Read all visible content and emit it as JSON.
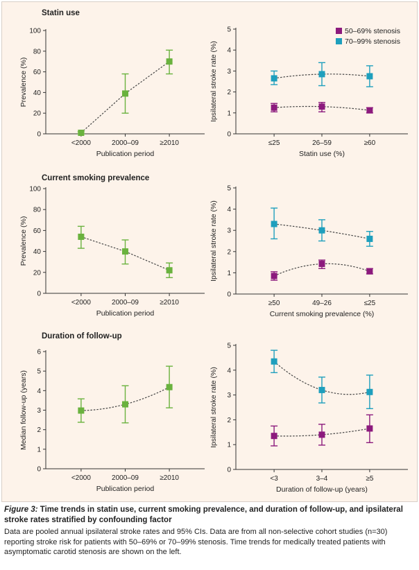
{
  "caption": {
    "figure_label": "Figure 3:",
    "title": "Time trends in statin use, current smoking prevalence, and duration of follow-up, and ipsilateral stroke rates stratified by confounding factor",
    "body": "Data are pooled annual ipsilateral stroke rates and 95% CIs. Data are from all non-selective cohort studies (n=30) reporting stroke risk for patients with 50–69% or 70–99% stenosis. Time trends for medically treated patients with asymptomatic carotid stenosis are shown on the left."
  },
  "colors": {
    "green": "#6ab23e",
    "purple": "#8c1a7d",
    "teal": "#1e9fbd",
    "axis": "#333333",
    "panel_bg": "#fdf3ea"
  },
  "chart_data": [
    {
      "id": "statin-prevalence",
      "type": "line",
      "title": "Statin use",
      "xlabel": "Publication period",
      "ylabel": "Prevalence (%)",
      "categories": [
        "<2000",
        "2000–09",
        "≥2010"
      ],
      "ylim": [
        0,
        100
      ],
      "yticks": [
        0,
        20,
        40,
        60,
        80,
        100
      ],
      "series": [
        {
          "color": "green",
          "trend": "straight",
          "points": [
            {
              "y": 1,
              "low": 0,
              "high": 2
            },
            {
              "y": 39,
              "low": 20,
              "high": 58
            },
            {
              "y": 70,
              "low": 58,
              "high": 81
            }
          ]
        }
      ]
    },
    {
      "id": "statin-stroke",
      "type": "line",
      "title": "",
      "xlabel": "Statin use (%)",
      "ylabel": "Ipsilateral stroke rate (%)",
      "categories": [
        "≤25",
        "26–59",
        "≥60"
      ],
      "ylim": [
        0,
        5
      ],
      "yticks": [
        0,
        1,
        2,
        3,
        4,
        5
      ],
      "legend": {
        "placement": "top-right",
        "entries": [
          {
            "name": "50–69% stenosis",
            "color": "purple"
          },
          {
            "name": "70–99% stenosis",
            "color": "teal"
          }
        ]
      },
      "series": [
        {
          "name": "50–69% stenosis",
          "color": "purple",
          "trend": "curve",
          "points": [
            {
              "y": 1.25,
              "low": 1.05,
              "high": 1.45
            },
            {
              "y": 1.3,
              "low": 1.05,
              "high": 1.5
            },
            {
              "y": 1.12,
              "low": 1.0,
              "high": 1.25
            }
          ]
        },
        {
          "name": "70–99% stenosis",
          "color": "teal",
          "trend": "curve",
          "points": [
            {
              "y": 2.65,
              "low": 2.35,
              "high": 3.0
            },
            {
              "y": 2.85,
              "low": 2.3,
              "high": 3.4
            },
            {
              "y": 2.75,
              "low": 2.25,
              "high": 3.25
            }
          ]
        }
      ]
    },
    {
      "id": "smoking-prevalence",
      "type": "line",
      "title": "Current smoking prevalence",
      "xlabel": "Publication period",
      "ylabel": "Prevalence (%)",
      "categories": [
        "<2000",
        "2000–09",
        "≥2010"
      ],
      "ylim": [
        0,
        100
      ],
      "yticks": [
        0,
        20,
        40,
        60,
        80,
        100
      ],
      "series": [
        {
          "color": "green",
          "trend": "straight",
          "points": [
            {
              "y": 54,
              "low": 43,
              "high": 64
            },
            {
              "y": 40,
              "low": 28,
              "high": 51
            },
            {
              "y": 22,
              "low": 15,
              "high": 29
            }
          ]
        }
      ]
    },
    {
      "id": "smoking-stroke",
      "type": "line",
      "title": "",
      "xlabel": "Current smoking prevalence (%)",
      "ylabel": "Ipsilateral stroke rate (%)",
      "categories": [
        "≥50",
        "49–26",
        "≤25"
      ],
      "ylim": [
        0,
        5
      ],
      "yticks": [
        0,
        1,
        2,
        3,
        4,
        5
      ],
      "series": [
        {
          "name": "50–69% stenosis",
          "color": "purple",
          "trend": "curve",
          "points": [
            {
              "y": 0.85,
              "low": 0.65,
              "high": 1.05
            },
            {
              "y": 1.42,
              "low": 1.2,
              "high": 1.6
            },
            {
              "y": 1.07,
              "low": 0.95,
              "high": 1.2
            }
          ]
        },
        {
          "name": "70–99% stenosis",
          "color": "teal",
          "trend": "curve",
          "points": [
            {
              "y": 3.3,
              "low": 2.6,
              "high": 4.05
            },
            {
              "y": 3.0,
              "low": 2.5,
              "high": 3.5
            },
            {
              "y": 2.6,
              "low": 2.25,
              "high": 2.95
            }
          ]
        }
      ]
    },
    {
      "id": "followup-duration",
      "type": "line",
      "title": "Duration of follow-up",
      "xlabel": "Publication period",
      "ylabel": "Median follow-up (years)",
      "categories": [
        "<2000",
        "2000–09",
        "≥2010"
      ],
      "ylim": [
        0,
        6
      ],
      "yticks": [
        0,
        1,
        2,
        3,
        4,
        5,
        6
      ],
      "series": [
        {
          "color": "green",
          "trend": "curve",
          "points": [
            {
              "y": 2.98,
              "low": 2.38,
              "high": 3.58
            },
            {
              "y": 3.3,
              "low": 2.35,
              "high": 4.25
            },
            {
              "y": 4.18,
              "low": 3.12,
              "high": 5.25
            }
          ]
        }
      ]
    },
    {
      "id": "followup-stroke",
      "type": "line",
      "title": "",
      "xlabel": "Duration of follow-up (years)",
      "ylabel": "Ipsilateral stroke rate (%)",
      "categories": [
        "<3",
        "3–4",
        "≥5"
      ],
      "ylim": [
        0,
        5
      ],
      "yticks": [
        0,
        1,
        2,
        3,
        4,
        5
      ],
      "series": [
        {
          "name": "50–69% stenosis",
          "color": "purple",
          "trend": "curve",
          "points": [
            {
              "y": 1.35,
              "low": 0.95,
              "high": 1.75
            },
            {
              "y": 1.4,
              "low": 0.98,
              "high": 1.82
            },
            {
              "y": 1.65,
              "low": 1.08,
              "high": 2.2
            }
          ]
        },
        {
          "name": "70–99% stenosis",
          "color": "teal",
          "trend": "curve",
          "points": [
            {
              "y": 4.35,
              "low": 3.9,
              "high": 4.8
            },
            {
              "y": 3.2,
              "low": 2.68,
              "high": 3.72
            },
            {
              "y": 3.12,
              "low": 2.45,
              "high": 3.8
            }
          ]
        }
      ]
    }
  ]
}
